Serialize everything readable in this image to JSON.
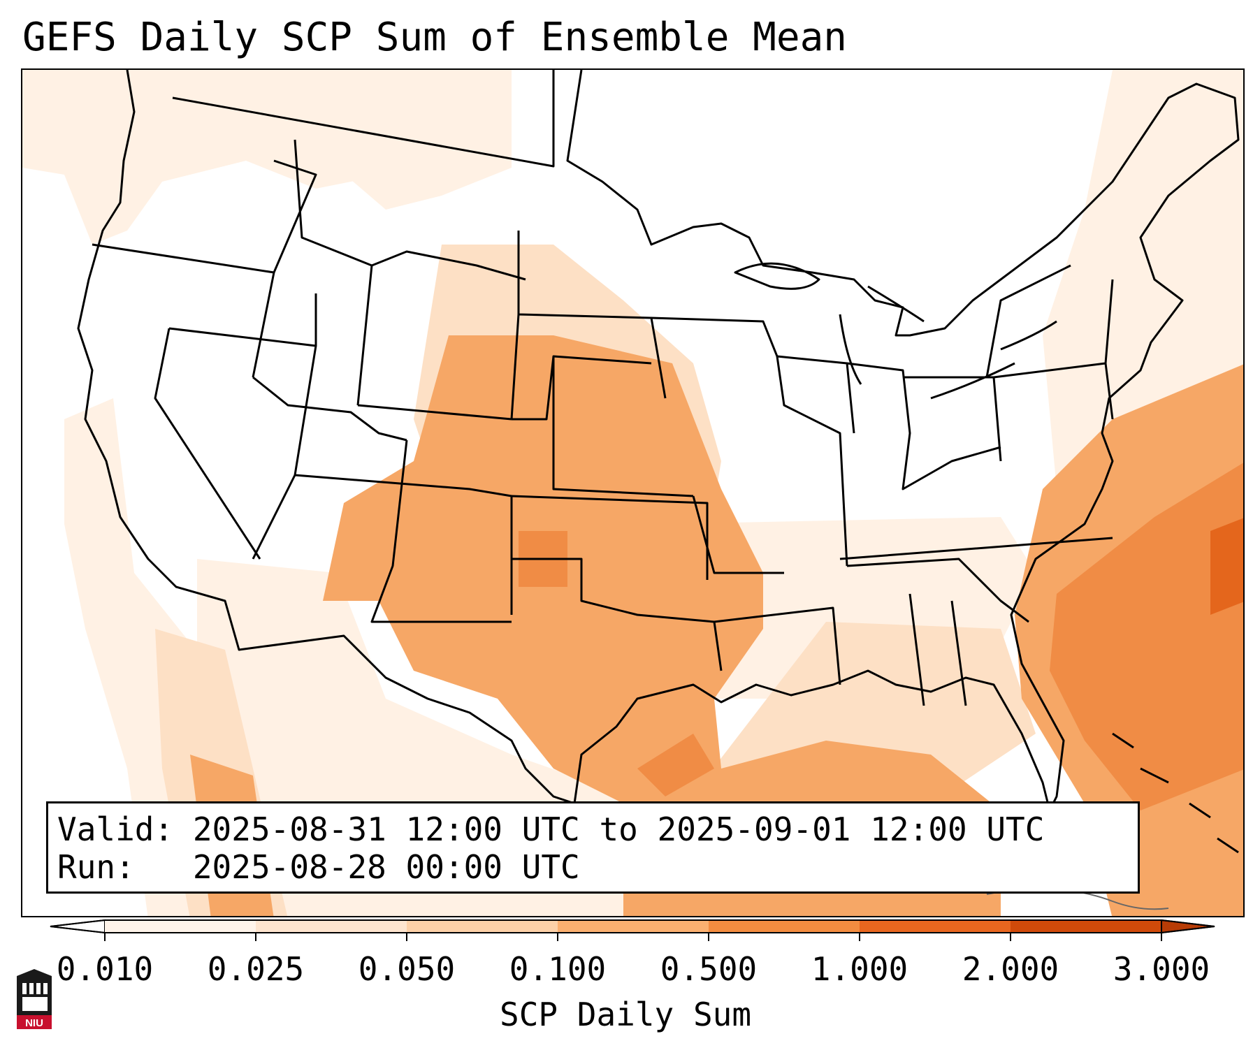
{
  "title": "GEFS Daily SCP Sum of Ensemble Mean",
  "info": {
    "valid_line": "Valid: 2025-08-31 12:00 UTC to 2025-09-01 12:00 UTC",
    "run_line": "Run:   2025-08-28 00:00 UTC"
  },
  "colorbar": {
    "label": "SCP Daily Sum",
    "ticks": [
      "0.010",
      "0.025",
      "0.050",
      "0.100",
      "0.500",
      "1.000",
      "2.000",
      "3.000"
    ],
    "colors": [
      "#fff4ea",
      "#fee5cf",
      "#fdd1a8",
      "#fbb070",
      "#f38c40",
      "#e8661f",
      "#d04a0a"
    ],
    "extend": "both"
  },
  "colors": {
    "level_1": "#fff1e4",
    "level_2": "#fde0c5",
    "level_3": "#fbc99c",
    "level_4": "#f6a766",
    "level_5": "#f08c45",
    "level_6": "#e4661c"
  },
  "logo": {
    "text": "NIU",
    "accent": "#c8102e"
  }
}
